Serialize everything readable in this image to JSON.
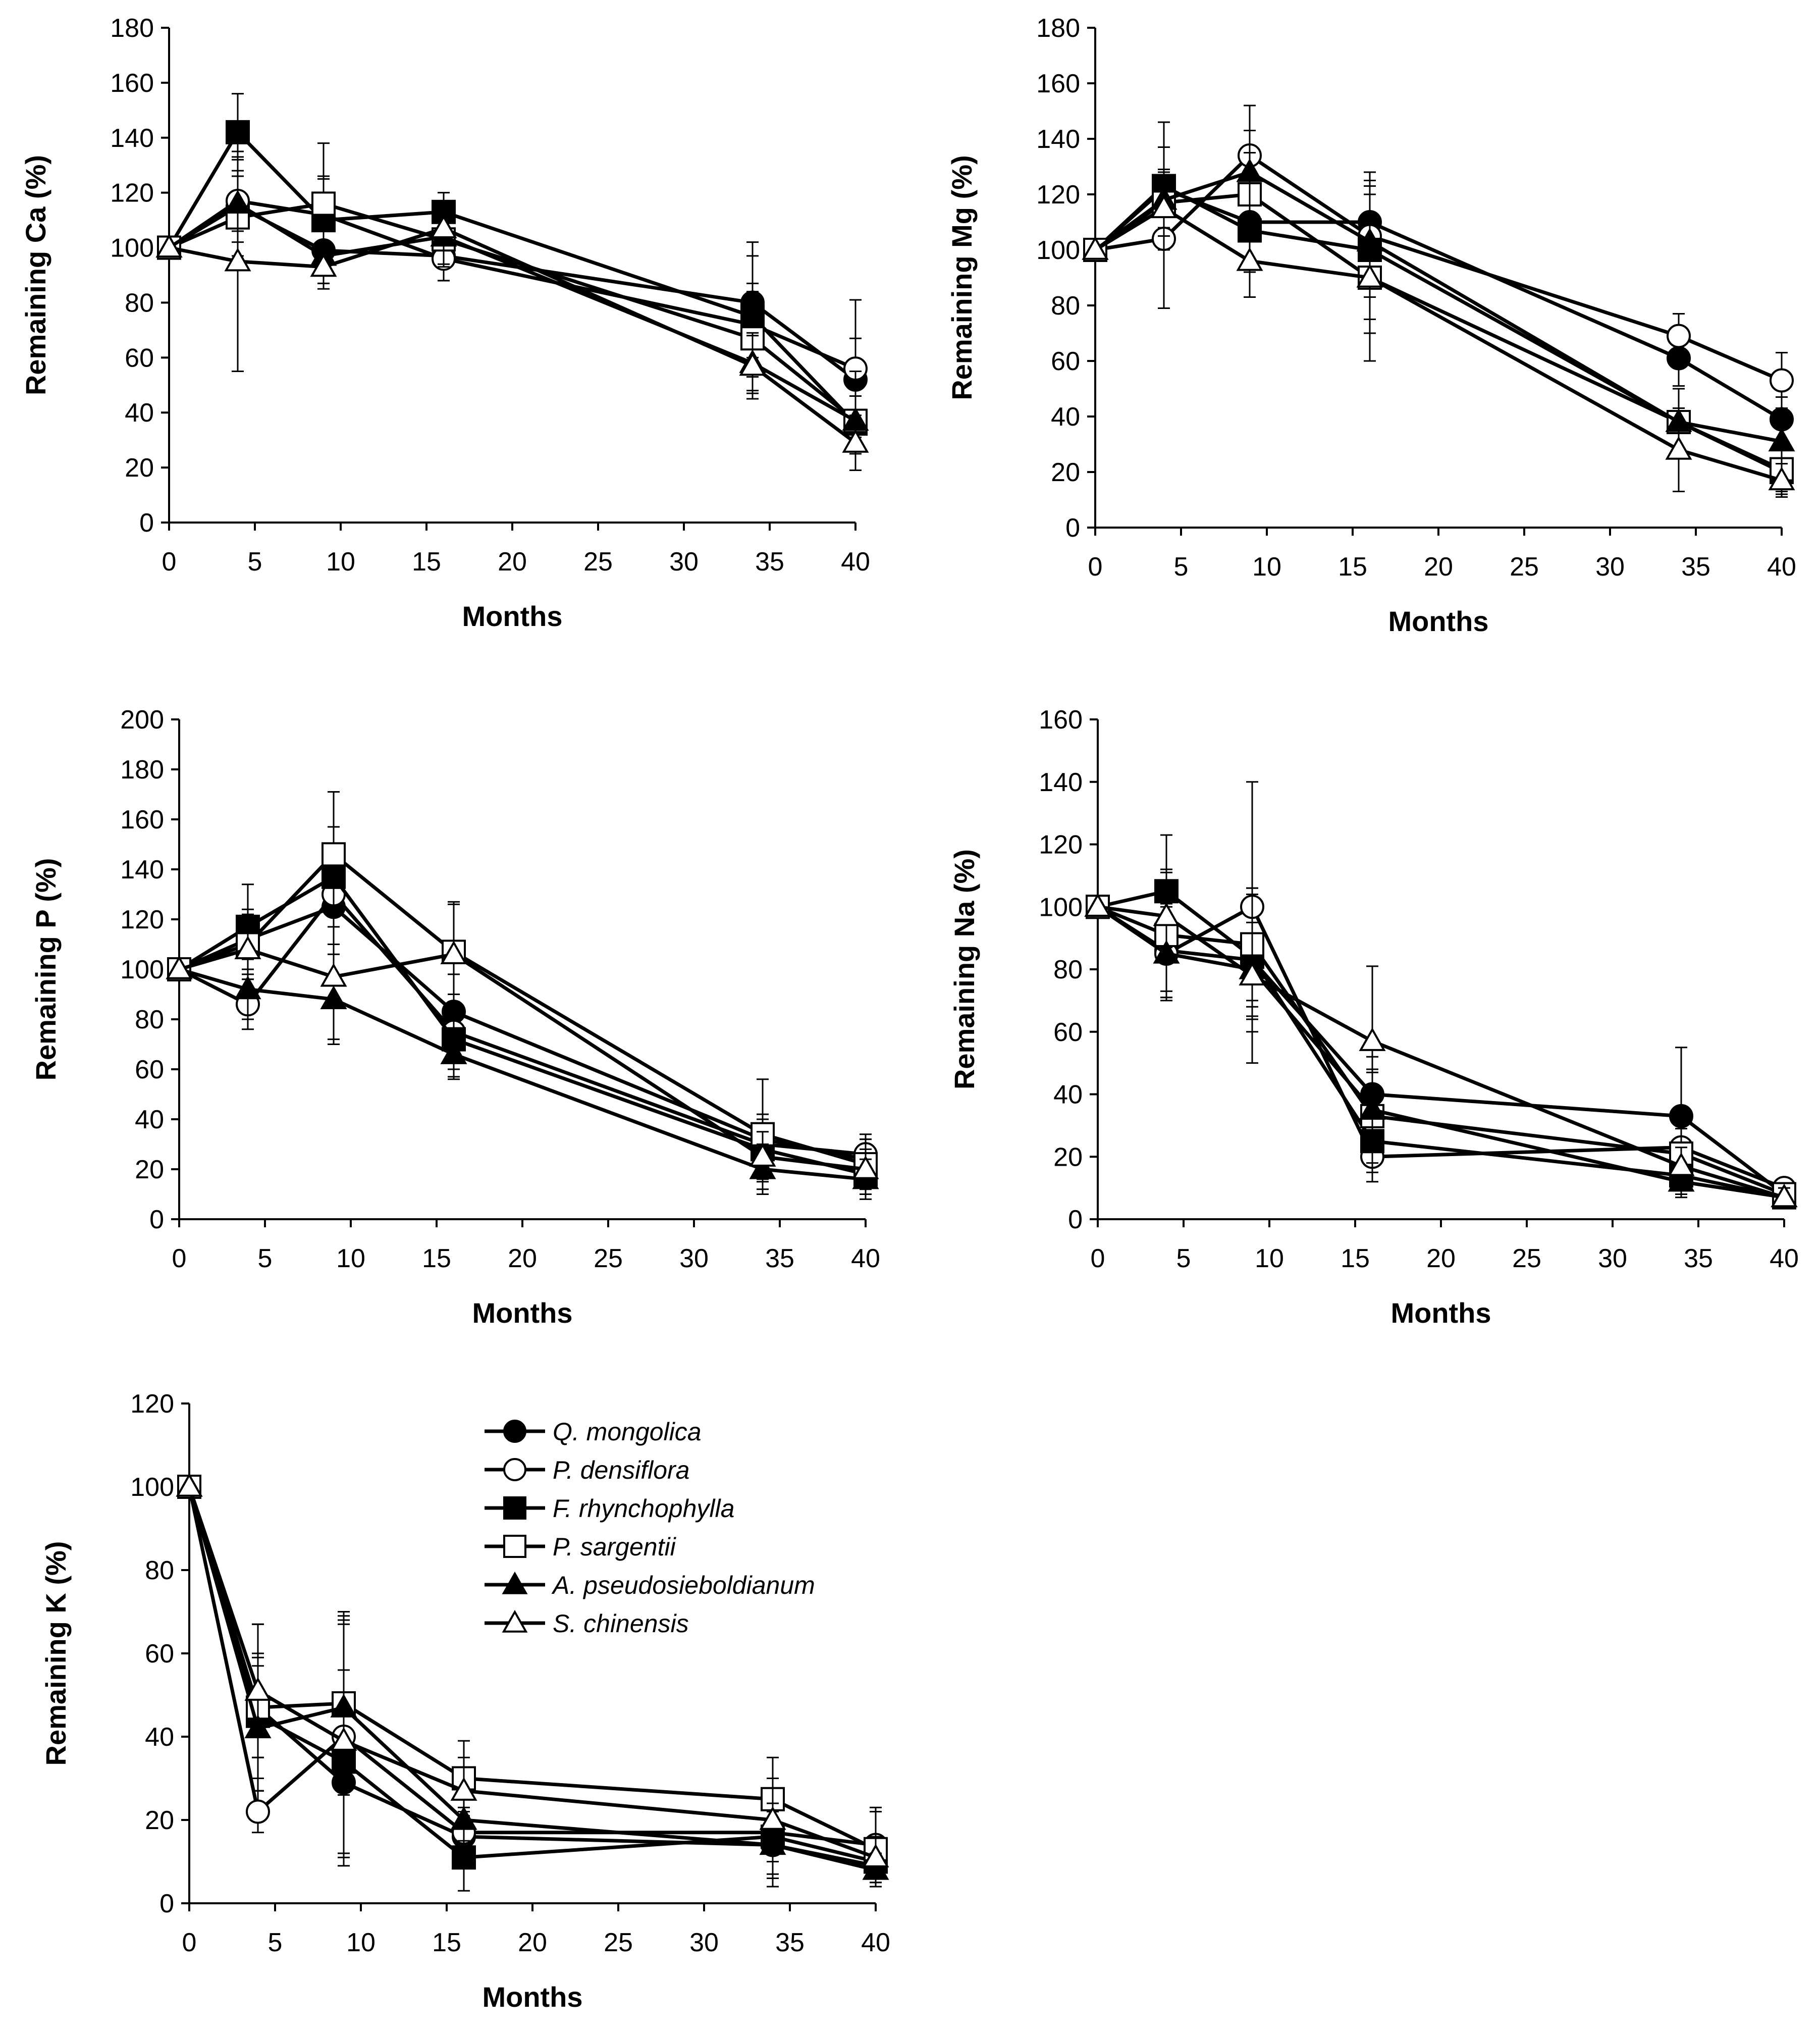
{
  "figure": {
    "legend": [
      {
        "name": "Q. mongolica",
        "marker": "filled-circle"
      },
      {
        "name": "P. densiflora",
        "marker": "open-circle"
      },
      {
        "name": "F. rhynchophylla",
        "marker": "filled-square"
      },
      {
        "name": "P. sargentii",
        "marker": "open-square"
      },
      {
        "name": "A. pseudosieboldianum",
        "marker": "filled-triangle"
      },
      {
        "name": "S. chinensis",
        "marker": "open-triangle"
      }
    ]
  },
  "chart_data": [
    {
      "type": "line",
      "title": "",
      "xlabel": "Months",
      "ylabel": "Remaining Ca (%)",
      "xlim": [
        0,
        40
      ],
      "ylim": [
        0,
        180
      ],
      "xticks": [
        0,
        5,
        10,
        15,
        20,
        25,
        30,
        35,
        40
      ],
      "yticks": [
        0,
        20,
        40,
        60,
        80,
        100,
        120,
        140,
        160,
        180
      ],
      "x": [
        0,
        4,
        9,
        16,
        34,
        40
      ],
      "series": [
        {
          "name": "Q. mongolica",
          "values": [
            100,
            115,
            99,
            97,
            80,
            52
          ],
          "errors": [
            0,
            18,
            12,
            9,
            22,
            15
          ]
        },
        {
          "name": "P. densiflora",
          "values": [
            100,
            117,
            112,
            96,
            72,
            56
          ],
          "errors": [
            0,
            15,
            14,
            8,
            12,
            25
          ]
        },
        {
          "name": "F. rhynchophylla",
          "values": [
            100,
            142,
            110,
            113,
            75,
            36
          ],
          "errors": [
            0,
            14,
            15,
            7,
            22,
            10
          ]
        },
        {
          "name": "P. sargentii",
          "values": [
            100,
            111,
            116,
            103,
            67,
            37
          ],
          "errors": [
            0,
            15,
            22,
            10,
            20,
            18
          ]
        },
        {
          "name": "A. pseudosieboldianum",
          "values": [
            100,
            116,
            97,
            104,
            58,
            37
          ],
          "errors": [
            0,
            10,
            10,
            10,
            10,
            12
          ]
        },
        {
          "name": "S. chinensis",
          "values": [
            100,
            95,
            93,
            107,
            57,
            29
          ],
          "errors": [
            0,
            40,
            8,
            8,
            12,
            10
          ]
        }
      ]
    },
    {
      "type": "line",
      "title": "",
      "xlabel": "Months",
      "ylabel": "Remaining Mg (%)",
      "xlim": [
        0,
        40
      ],
      "ylim": [
        0,
        180
      ],
      "xticks": [
        0,
        5,
        10,
        15,
        20,
        25,
        30,
        35,
        40
      ],
      "yticks": [
        0,
        20,
        40,
        60,
        80,
        100,
        120,
        140,
        160,
        180
      ],
      "x": [
        0,
        4,
        9,
        16,
        34,
        40
      ],
      "series": [
        {
          "name": "Q. mongolica",
          "values": [
            100,
            122,
            110,
            110,
            61,
            39
          ],
          "errors": [
            0,
            15,
            15,
            18,
            10,
            8
          ]
        },
        {
          "name": "P. densiflora",
          "values": [
            100,
            104,
            134,
            105,
            69,
            53
          ],
          "errors": [
            0,
            25,
            18,
            15,
            8,
            10
          ]
        },
        {
          "name": "F. rhynchophylla",
          "values": [
            100,
            123,
            107,
            100,
            38,
            20
          ],
          "errors": [
            0,
            23,
            15,
            25,
            12,
            8
          ]
        },
        {
          "name": "P. sargentii",
          "values": [
            100,
            117,
            120,
            90,
            38,
            21
          ],
          "errors": [
            0,
            12,
            15,
            30,
            12,
            8
          ]
        },
        {
          "name": "A. pseudosieboldianum",
          "values": [
            100,
            118,
            128,
            103,
            38,
            31
          ],
          "errors": [
            0,
            10,
            15,
            20,
            12,
            8
          ]
        },
        {
          "name": "S. chinensis",
          "values": [
            100,
            115,
            96,
            90,
            28,
            17
          ],
          "errors": [
            0,
            10,
            13,
            20,
            15,
            6
          ]
        }
      ]
    },
    {
      "type": "line",
      "title": "",
      "xlabel": "Months",
      "ylabel": "Remaining P (%)",
      "xlim": [
        0,
        40
      ],
      "ylim": [
        0,
        200
      ],
      "xticks": [
        0,
        5,
        10,
        15,
        20,
        25,
        30,
        35,
        40
      ],
      "yticks": [
        0,
        20,
        40,
        60,
        80,
        100,
        120,
        140,
        160,
        180,
        200
      ],
      "x": [
        0,
        4,
        9,
        16,
        34,
        40
      ],
      "series": [
        {
          "name": "Q. mongolica",
          "values": [
            100,
            112,
            125,
            83,
            32,
            24
          ],
          "errors": [
            0,
            12,
            15,
            15,
            10,
            8
          ]
        },
        {
          "name": "P. densiflora",
          "values": [
            100,
            86,
            130,
            75,
            30,
            26
          ],
          "errors": [
            0,
            10,
            20,
            15,
            10,
            8
          ]
        },
        {
          "name": "F. rhynchophylla",
          "values": [
            100,
            117,
            137,
            72,
            28,
            18
          ],
          "errors": [
            0,
            17,
            20,
            15,
            12,
            8
          ]
        },
        {
          "name": "P. sargentii",
          "values": [
            100,
            110,
            146,
            107,
            34,
            22
          ],
          "errors": [
            0,
            12,
            25,
            20,
            22,
            10
          ]
        },
        {
          "name": "A. pseudosieboldianum",
          "values": [
            100,
            92,
            88,
            66,
            20,
            16
          ],
          "errors": [
            0,
            12,
            18,
            10,
            10,
            8
          ]
        },
        {
          "name": "S. chinensis",
          "values": [
            100,
            108,
            97,
            106,
            25,
            20
          ],
          "errors": [
            0,
            12,
            25,
            20,
            10,
            8
          ]
        }
      ]
    },
    {
      "type": "line",
      "title": "",
      "xlabel": "Months",
      "ylabel": "Remaining Na (%)",
      "xlim": [
        0,
        40
      ],
      "ylim": [
        0,
        160
      ],
      "xticks": [
        0,
        5,
        10,
        15,
        20,
        25,
        30,
        35,
        40
      ],
      "yticks": [
        0,
        20,
        40,
        60,
        80,
        100,
        120,
        140,
        160
      ],
      "x": [
        0,
        4,
        9,
        16,
        34,
        40
      ],
      "series": [
        {
          "name": "Q. mongolica",
          "values": [
            100,
            86,
            83,
            40,
            33,
            8
          ],
          "errors": [
            0,
            15,
            15,
            12,
            22,
            3
          ]
        },
        {
          "name": "P. densiflora",
          "values": [
            100,
            85,
            100,
            20,
            23,
            10
          ],
          "errors": [
            0,
            15,
            40,
            8,
            8,
            3
          ]
        },
        {
          "name": "F. rhynchophylla",
          "values": [
            100,
            105,
            84,
            25,
            14,
            7
          ],
          "errors": [
            0,
            18,
            20,
            10,
            6,
            3
          ]
        },
        {
          "name": "P. sargentii",
          "values": [
            100,
            91,
            88,
            33,
            21,
            8
          ],
          "errors": [
            0,
            20,
            18,
            15,
            8,
            3
          ]
        },
        {
          "name": "A. pseudosieboldianum",
          "values": [
            100,
            85,
            80,
            35,
            12,
            7
          ],
          "errors": [
            0,
            12,
            15,
            12,
            5,
            3
          ]
        },
        {
          "name": "S. chinensis",
          "values": [
            100,
            97,
            78,
            57,
            17,
            7
          ],
          "errors": [
            0,
            15,
            28,
            24,
            6,
            3
          ]
        }
      ]
    },
    {
      "type": "line",
      "title": "",
      "xlabel": "Months",
      "ylabel": "Remaining K (%)",
      "xlim": [
        0,
        40
      ],
      "ylim": [
        0,
        120
      ],
      "xticks": [
        0,
        5,
        10,
        15,
        20,
        25,
        30,
        35,
        40
      ],
      "yticks": [
        0,
        20,
        40,
        60,
        80,
        100,
        120
      ],
      "x": [
        0,
        4,
        9,
        16,
        34,
        40
      ],
      "series": [
        {
          "name": "Q. mongolica",
          "values": [
            100,
            47,
            29,
            16,
            14,
            9
          ],
          "errors": [
            0,
            12,
            18,
            6,
            8,
            4
          ]
        },
        {
          "name": "P. densiflora",
          "values": [
            100,
            22,
            40,
            17,
            17,
            14
          ],
          "errors": [
            0,
            5,
            28,
            6,
            10,
            9
          ]
        },
        {
          "name": "F. rhynchophylla",
          "values": [
            100,
            45,
            34,
            11,
            16,
            10
          ],
          "errors": [
            0,
            15,
            22,
            8,
            10,
            4
          ]
        },
        {
          "name": "P. sargentii",
          "values": [
            100,
            47,
            48,
            30,
            25,
            13
          ],
          "errors": [
            0,
            20,
            22,
            9,
            10,
            9
          ]
        },
        {
          "name": "A. pseudosieboldianum",
          "values": [
            100,
            42,
            47,
            20,
            14,
            8
          ],
          "errors": [
            0,
            15,
            20,
            5,
            10,
            4
          ]
        },
        {
          "name": "S. chinensis",
          "values": [
            100,
            51,
            39,
            27,
            20,
            11
          ],
          "errors": [
            0,
            16,
            30,
            8,
            10,
            5
          ]
        }
      ]
    }
  ]
}
